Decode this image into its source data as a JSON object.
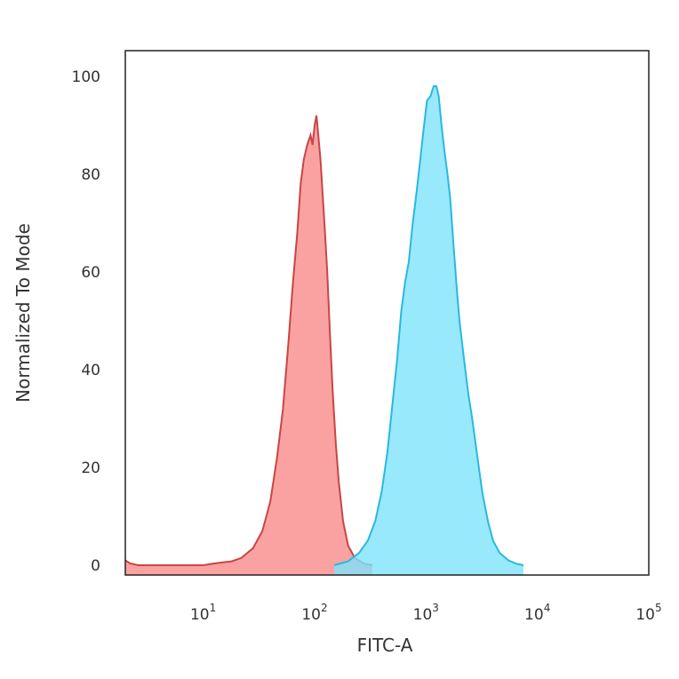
{
  "chart_data": {
    "type": "area",
    "title": "",
    "xlabel": "FITC-A",
    "ylabel": "Normalized To Mode",
    "x_scale": "log",
    "xlim": [
      2,
      100000
    ],
    "ylim": [
      0,
      100
    ],
    "grid": false,
    "legend": "none",
    "y_ticks": [
      {
        "value": 0,
        "label": "0"
      },
      {
        "value": 20,
        "label": "20"
      },
      {
        "value": 40,
        "label": "40"
      },
      {
        "value": 60,
        "label": "60"
      },
      {
        "value": 80,
        "label": "80"
      },
      {
        "value": 100,
        "label": "100"
      }
    ],
    "x_ticks": [
      {
        "value": 10,
        "base": "10",
        "exp": "1"
      },
      {
        "value": 100,
        "base": "10",
        "exp": "2"
      },
      {
        "value": 1000,
        "base": "10",
        "exp": "3"
      },
      {
        "value": 10000,
        "base": "10",
        "exp": "4"
      },
      {
        "value": 100000,
        "base": "10",
        "exp": "5"
      }
    ],
    "series": [
      {
        "fill": "#f98b8b",
        "stroke": "#c94545",
        "points": [
          [
            2,
            1
          ],
          [
            2.2,
            0.4
          ],
          [
            2.6,
            0
          ],
          [
            10,
            0
          ],
          [
            12,
            0.3
          ],
          [
            14,
            0.5
          ],
          [
            18,
            0.8
          ],
          [
            22,
            1.5
          ],
          [
            28,
            3.5
          ],
          [
            34,
            7
          ],
          [
            40,
            13
          ],
          [
            46,
            22
          ],
          [
            52,
            32
          ],
          [
            58,
            45
          ],
          [
            64,
            58
          ],
          [
            70,
            68
          ],
          [
            75,
            78
          ],
          [
            80,
            83
          ],
          [
            86,
            86
          ],
          [
            92,
            88
          ],
          [
            96,
            86
          ],
          [
            100,
            90
          ],
          [
            104,
            92
          ],
          [
            108,
            88
          ],
          [
            113,
            83
          ],
          [
            118,
            76
          ],
          [
            124,
            68
          ],
          [
            130,
            60
          ],
          [
            137,
            48
          ],
          [
            145,
            36
          ],
          [
            155,
            25
          ],
          [
            165,
            17
          ],
          [
            180,
            9
          ],
          [
            200,
            4
          ],
          [
            230,
            1.5
          ],
          [
            280,
            0.3
          ],
          [
            330,
            0
          ]
        ]
      },
      {
        "fill": "#7ee3fb",
        "stroke": "#2ab8e0",
        "points": [
          [
            150,
            0
          ],
          [
            200,
            0.8
          ],
          [
            250,
            2.5
          ],
          [
            300,
            5
          ],
          [
            350,
            9
          ],
          [
            400,
            15
          ],
          [
            450,
            23
          ],
          [
            500,
            33
          ],
          [
            550,
            42
          ],
          [
            600,
            52
          ],
          [
            650,
            58
          ],
          [
            700,
            62
          ],
          [
            760,
            70
          ],
          [
            820,
            76
          ],
          [
            880,
            82
          ],
          [
            950,
            89
          ],
          [
            1020,
            95
          ],
          [
            1100,
            96
          ],
          [
            1170,
            98
          ],
          [
            1240,
            98
          ],
          [
            1300,
            96
          ],
          [
            1380,
            90
          ],
          [
            1460,
            85
          ],
          [
            1560,
            80
          ],
          [
            1650,
            75
          ],
          [
            1760,
            66
          ],
          [
            1900,
            56
          ],
          [
            2000,
            50
          ],
          [
            2200,
            42
          ],
          [
            2400,
            35
          ],
          [
            2600,
            30
          ],
          [
            2900,
            22
          ],
          [
            3200,
            15
          ],
          [
            3600,
            9
          ],
          [
            4000,
            5
          ],
          [
            4600,
            2.5
          ],
          [
            5500,
            1
          ],
          [
            6500,
            0.3
          ],
          [
            7500,
            0
          ]
        ]
      }
    ]
  }
}
